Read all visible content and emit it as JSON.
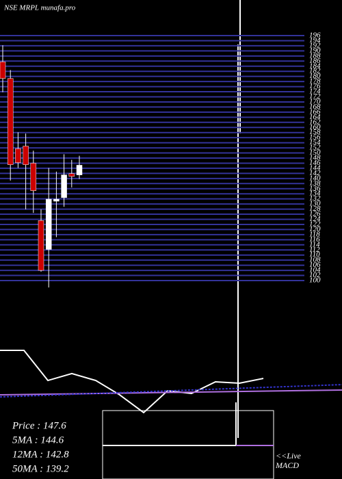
{
  "chart_data": [
    {
      "type": "candlestick",
      "title": "NSE MRPL munafa.pro",
      "categories": [
        null,
        null,
        null,
        null,
        null,
        null,
        null,
        null,
        null,
        null,
        null
      ],
      "open": [
        185.7,
        179.2,
        151.7,
        152.7,
        146.0,
        123.5,
        112.2,
        131.1,
        132.5,
        141.9,
        141.4
      ],
      "high": [
        192.2,
        182.5,
        158.1,
        157.6,
        150.9,
        127.9,
        144.1,
        142.7,
        149.5,
        147.3,
        148.9
      ],
      "low": [
        173.8,
        139.2,
        144.1,
        127.9,
        126.5,
        103.5,
        97.3,
        117.0,
        128.9,
        136.5,
        139.8
      ],
      "close": [
        179.2,
        145.4,
        146.2,
        145.4,
        135.2,
        104.0,
        131.9,
        131.9,
        141.4,
        140.8,
        145.2
      ],
      "up_color": "#ffffff",
      "down_color": "#cc0000",
      "ylim": [
        100,
        196
      ],
      "yticks": [
        100,
        102,
        104,
        106,
        108,
        110,
        112,
        114,
        116,
        118,
        120,
        122,
        124,
        126,
        128,
        130,
        132,
        134,
        136,
        138,
        140,
        142,
        144,
        146,
        148,
        150,
        152,
        154,
        156,
        158,
        160,
        162,
        164,
        166,
        168,
        170,
        172,
        174,
        176,
        178,
        180,
        182,
        184,
        186,
        188,
        190,
        192,
        194,
        196
      ],
      "grid": true,
      "grid_color": "#33339a"
    },
    {
      "type": "line",
      "ylim": [
        0,
        100
      ],
      "series": [
        {
          "color": "#ffffff",
          "x": [
            0,
            1,
            2,
            3,
            4,
            5,
            6,
            7,
            8,
            9,
            10,
            11
          ],
          "values": [
            90,
            90,
            53.3,
            61.7,
            53.3,
            35.8,
            14.2,
            40.8,
            37.5,
            51.7,
            50,
            55.8
          ]
        },
        {
          "color": "#b070e0",
          "x": [
            0,
            14.3
          ],
          "values": [
            35.8,
            41.7
          ]
        },
        {
          "color": "#3333cc",
          "x": [
            0,
            14.3
          ],
          "values": [
            33.3,
            48.3
          ]
        }
      ],
      "info": [
        "Price   : 147.6",
        "5MA : 144.6",
        "12MA : 142.8",
        "50MA : 139.2"
      ],
      "note": [
        "<<Live",
        "MACD"
      ]
    }
  ]
}
